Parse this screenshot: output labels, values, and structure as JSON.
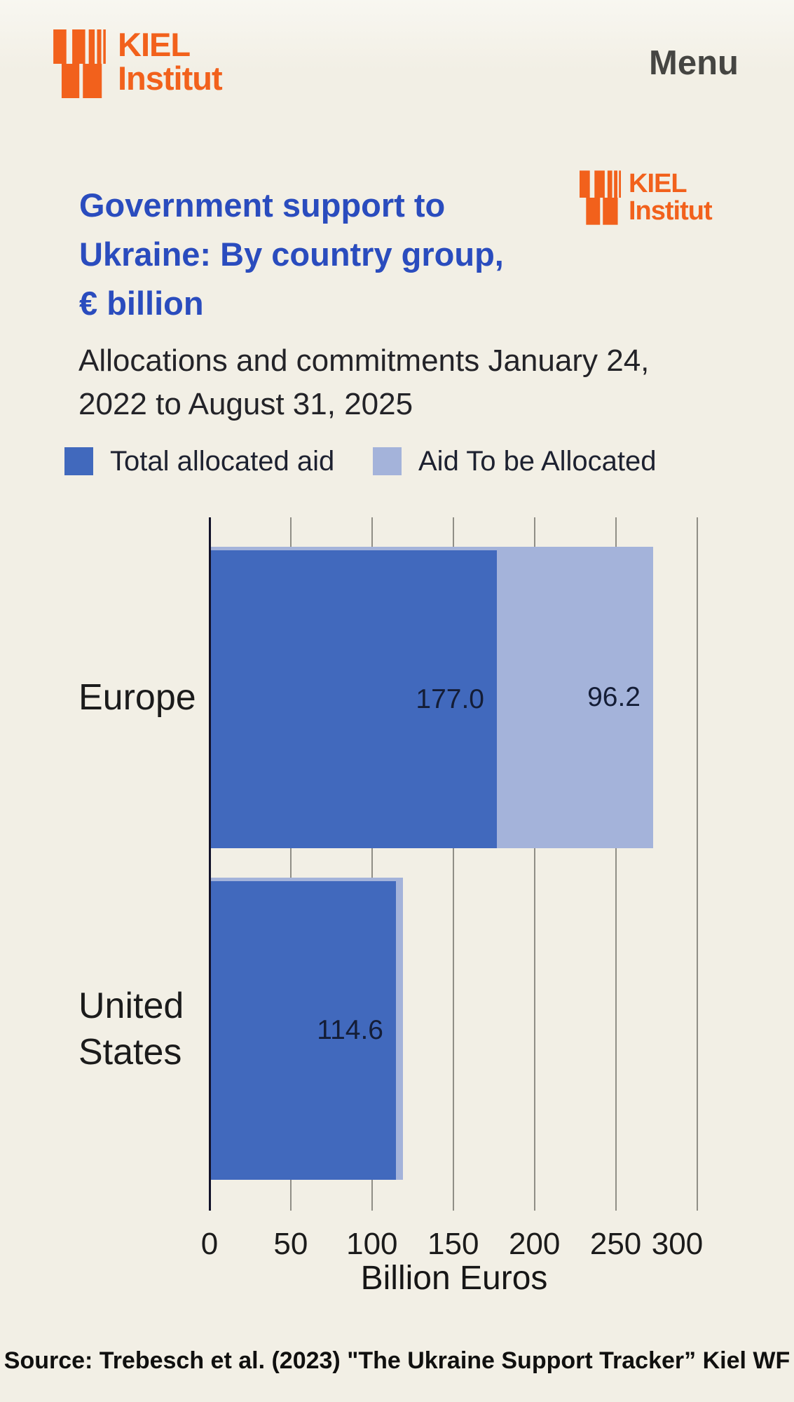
{
  "header": {
    "logo": {
      "line1": "KIEL",
      "line2": "Institut"
    },
    "menu_label": "Menu"
  },
  "chart": {
    "title_lines": [
      "Government support to",
      "Ukraine: By country group,",
      "€ billion"
    ],
    "subtitle_lines": [
      "Allocations and commitments January 24,",
      "2022 to August 31, 2025"
    ],
    "watermark_logo": {
      "line1": "KIEL",
      "line2": "Institut"
    },
    "legend": [
      {
        "label": "Total allocated aid",
        "color": "#4169bd"
      },
      {
        "label": "Aid To be Allocated",
        "color": "#a4b3da"
      }
    ],
    "source": "Source: Trebesch et al. (2023) \"The Ukraine Support Tracker” Kiel WF"
  },
  "chart_data": {
    "type": "bar",
    "orientation": "horizontal",
    "stacked": true,
    "categories": [
      "Europe",
      "United States"
    ],
    "series": [
      {
        "name": "Total allocated aid",
        "color": "#4169bd",
        "values": [
          177.0,
          114.6
        ],
        "labels": [
          "177.0",
          "114.6"
        ]
      },
      {
        "name": "Aid To be Allocated",
        "color": "#a4b3da",
        "values": [
          96.2,
          4.5
        ],
        "labels": [
          "96.2",
          ""
        ]
      }
    ],
    "xlabel": "Billion Euros",
    "x_ticks": [
      0,
      50,
      100,
      150,
      200,
      250,
      300
    ],
    "xlim": [
      0,
      300
    ],
    "grid": true,
    "legend_position": "top"
  }
}
